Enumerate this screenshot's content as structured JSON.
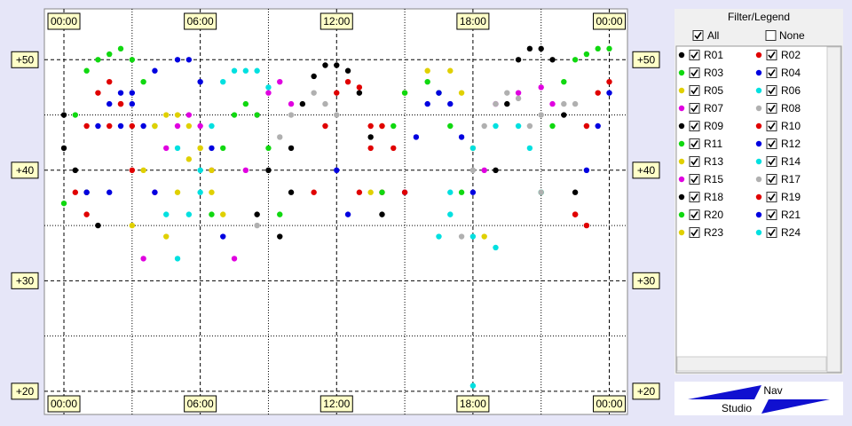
{
  "chart_data": {
    "type": "scatter",
    "xlim": [
      -0.86,
      24.8
    ],
    "ylim": [
      17.9,
      54.6
    ],
    "xticks": [
      {
        "value": 0,
        "label": "00:00"
      },
      {
        "value": 6,
        "label": "06:00"
      },
      {
        "value": 12,
        "label": "12:00"
      },
      {
        "value": 18,
        "label": "18:00"
      },
      {
        "value": 24,
        "label": "00:00"
      }
    ],
    "yticks": [
      {
        "value": 20,
        "label": "+20"
      },
      {
        "value": 30,
        "label": "+30"
      },
      {
        "value": 40,
        "label": "+40"
      },
      {
        "value": 50,
        "label": "+50"
      }
    ],
    "minor_xticks": [
      3,
      9,
      15,
      21
    ],
    "minor_yticks": [
      25,
      35,
      45
    ],
    "grid": true,
    "legend_title": "Filter/Legend",
    "filter_options": [
      "All",
      "None"
    ],
    "series": [
      {
        "name": "R01",
        "color": "#000000",
        "x": [
          9.5,
          10,
          10.5,
          11,
          11.5,
          12,
          12.5,
          13,
          13.5,
          14
        ],
        "values": [
          34,
          42,
          46,
          48.5,
          49.5,
          49.5,
          49,
          47,
          43,
          36
        ]
      },
      {
        "name": "R02",
        "color": "#e00000",
        "x": [
          11,
          11.5,
          12,
          12.5,
          13,
          13.5,
          14,
          2,
          2.5,
          3
        ],
        "values": [
          38,
          44,
          47,
          48,
          47.5,
          44,
          38,
          44,
          46,
          44
        ]
      },
      {
        "name": "R03",
        "color": "#10d810",
        "x": [
          0,
          0.5,
          1,
          1.5,
          2,
          2.5,
          3,
          3.5,
          4,
          21,
          21.5,
          22,
          22.5,
          23,
          23.5,
          24
        ],
        "values": [
          37,
          45,
          49,
          50,
          50.5,
          51,
          50,
          48,
          44,
          38,
          44,
          48,
          50,
          50.5,
          51,
          51
        ]
      },
      {
        "name": "R04",
        "color": "#0000e0",
        "x": [
          2,
          2.5,
          3,
          4,
          5,
          5.5,
          6,
          6.5,
          7
        ],
        "values": [
          38,
          44,
          47,
          49,
          50,
          50,
          48,
          42,
          34
        ]
      },
      {
        "name": "R05",
        "color": "#e0d000",
        "x": [
          13.5,
          14,
          15,
          16,
          17,
          17.5,
          18,
          18.5
        ],
        "values": [
          38,
          44,
          47,
          49,
          49,
          47,
          42,
          34
        ]
      },
      {
        "name": "R06",
        "color": "#00e0e0",
        "x": [
          6,
          6.5,
          7,
          7.5,
          8,
          8.5,
          9
        ],
        "values": [
          38,
          44,
          48,
          49,
          49,
          49,
          47.5
        ]
      },
      {
        "name": "R07",
        "color": "#e000e0",
        "x": [
          7.5,
          8,
          8.5,
          9,
          9.5,
          10,
          18.5,
          19,
          20,
          21,
          21.5
        ],
        "values": [
          32,
          40,
          45,
          47,
          48,
          46,
          40,
          46,
          47,
          47.5,
          46
        ]
      },
      {
        "name": "R08",
        "color": "#b0b0b0",
        "x": [
          8.5,
          9,
          9.5,
          10,
          11,
          11.5,
          12,
          21,
          22,
          22.5,
          23
        ],
        "values": [
          35,
          40,
          43,
          45,
          47,
          46,
          45,
          45,
          46,
          46,
          44
        ]
      },
      {
        "name": "R09",
        "color": "#000000",
        "x": [
          19,
          19.5,
          20,
          20.5,
          21,
          21.5,
          22,
          22.5,
          0,
          0.5
        ],
        "values": [
          40,
          46,
          50,
          51,
          51,
          50,
          45,
          38,
          45,
          40
        ]
      },
      {
        "name": "R10",
        "color": "#e00000",
        "x": [
          0.5,
          1,
          1.5,
          2,
          2.5,
          3,
          22.5,
          23,
          23.5,
          24
        ],
        "values": [
          38,
          44,
          47,
          48,
          46,
          40,
          36,
          44,
          47,
          48
        ]
      },
      {
        "name": "R11",
        "color": "#10d810",
        "x": [
          14,
          14.5,
          15,
          16,
          16.5,
          17,
          17.5
        ],
        "values": [
          38,
          44,
          47,
          48,
          47,
          44,
          38
        ]
      },
      {
        "name": "R12",
        "color": "#0000e0",
        "x": [
          15,
          15.5,
          16,
          16.5,
          17,
          17.5,
          18,
          23,
          23.5,
          24
        ],
        "values": [
          38,
          43,
          46,
          47,
          46,
          43,
          38,
          40,
          44,
          47
        ]
      },
      {
        "name": "R13",
        "color": "#e0d000",
        "x": [
          3,
          3.5,
          4,
          4.5,
          5,
          5.5,
          6,
          6.5
        ],
        "values": [
          35,
          40,
          44,
          45,
          45,
          44,
          42,
          38
        ]
      },
      {
        "name": "R14",
        "color": "#00e0e0",
        "x": [
          16.5,
          17,
          18,
          19,
          20,
          20.5,
          21,
          4.5,
          5
        ],
        "values": [
          34,
          38,
          42,
          44,
          44,
          42,
          38,
          36,
          42
        ]
      },
      {
        "name": "R15",
        "color": "#e000e0",
        "x": [
          3.5,
          4,
          4.5,
          5,
          5.5,
          6,
          6.5
        ],
        "values": [
          32,
          38,
          42,
          44,
          45,
          44,
          40
        ]
      },
      {
        "name": "R17",
        "color": "#b0b0b0",
        "x": [
          17.5,
          18,
          18.5,
          19,
          19.5,
          20,
          20.5,
          21
        ],
        "values": [
          34,
          40,
          44,
          46,
          47,
          46.5,
          44,
          38
        ]
      },
      {
        "name": "R18",
        "color": "#000000",
        "x": [
          8.5,
          9,
          10,
          1,
          1.5,
          0
        ],
        "values": [
          36,
          40,
          38,
          38,
          35,
          42
        ]
      },
      {
        "name": "R19",
        "color": "#e00000",
        "x": [
          13,
          13.5,
          14,
          14.5,
          15,
          22.5,
          23,
          1
        ],
        "values": [
          38,
          42,
          44,
          42,
          38,
          36,
          35,
          36
        ]
      },
      {
        "name": "R20",
        "color": "#10d810",
        "x": [
          6.5,
          7,
          7.5,
          8,
          8.5,
          9,
          9.5
        ],
        "values": [
          36,
          42,
          45,
          46,
          45,
          42,
          36
        ]
      },
      {
        "name": "R21",
        "color": "#0000e0",
        "x": [
          1,
          1.5,
          2,
          2.5,
          3,
          3.5,
          4,
          12,
          12.5
        ],
        "values": [
          38,
          44,
          46,
          47,
          46,
          44,
          38,
          40,
          36
        ]
      },
      {
        "name": "R23",
        "color": "#e0d000",
        "x": [
          4.5,
          5,
          5.5,
          6,
          6.5,
          7
        ],
        "values": [
          34,
          38,
          41,
          42,
          40,
          36
        ]
      },
      {
        "name": "R24",
        "color": "#00e0e0",
        "x": [
          5,
          5.5,
          6,
          17,
          18,
          19,
          18
        ],
        "values": [
          32,
          36,
          40,
          36,
          34,
          33,
          20.5
        ]
      }
    ]
  },
  "logo_text": [
    "Nav",
    "Studio"
  ]
}
